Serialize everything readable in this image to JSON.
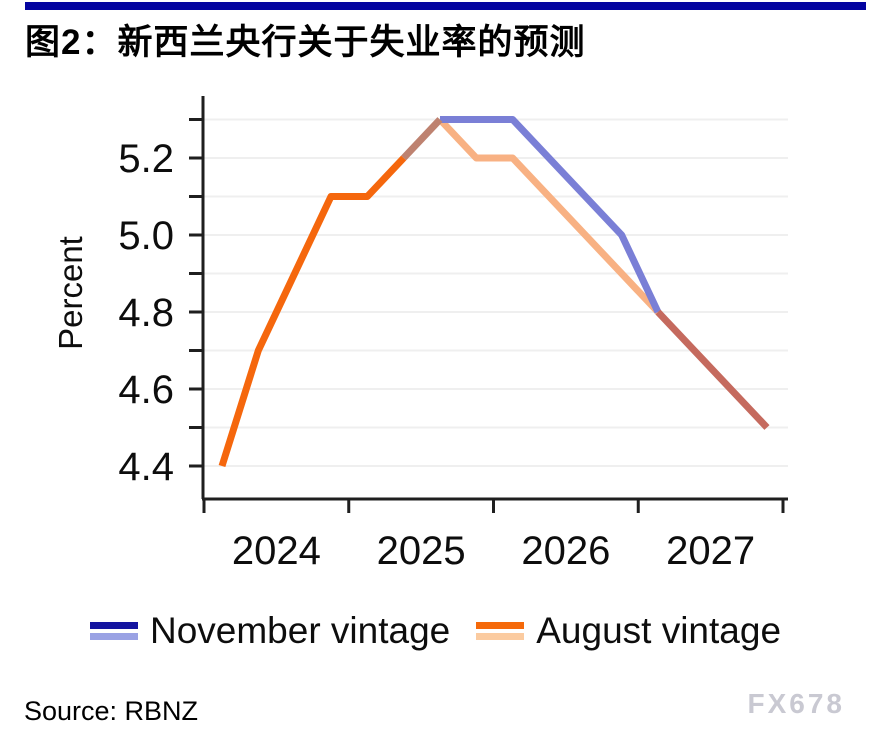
{
  "header": {
    "accent_bar_color": "#0404A0",
    "title": "图2：新西兰央行关于失业率的预测"
  },
  "chart_data": {
    "type": "line",
    "title": "图2：新西兰央行关于失业率的预测",
    "ylabel": "Percent",
    "ylim": [
      4.35,
      5.35
    ],
    "grid": true,
    "legend_position": "bottom",
    "x_tick_labels": [
      "2024",
      "2025",
      "2026",
      "2027"
    ],
    "quarters": [
      "2024Q1",
      "2024Q2",
      "2024Q3",
      "2024Q4",
      "2025Q1",
      "2025Q2",
      "2025Q3",
      "2025Q4",
      "2026Q1",
      "2026Q2",
      "2026Q3",
      "2026Q4",
      "2027Q1",
      "2027Q2",
      "2027Q3",
      "2027Q4"
    ],
    "ytick_minor_values": [
      4.4,
      4.5,
      4.6,
      4.7,
      4.8,
      4.9,
      5.0,
      5.1,
      5.2,
      5.3
    ],
    "ytick_labeled": [
      {
        "v": 5.2,
        "label": "5.2"
      },
      {
        "v": 5.0,
        "label": "5.0"
      },
      {
        "v": 4.8,
        "label": "4.8"
      },
      {
        "v": 4.6,
        "label": "4.6"
      },
      {
        "v": 4.4,
        "label": "4.4"
      }
    ],
    "series": [
      {
        "name": "November vintage",
        "history_color": "#1414A0",
        "forecast_color": "#7A7FD6",
        "history_end": "2025Q3",
        "values": [
          4.4,
          4.7,
          4.9,
          5.1,
          5.1,
          5.2,
          5.3,
          5.3,
          5.3,
          5.2,
          5.1,
          5.0,
          4.8,
          4.7,
          4.6,
          4.5
        ]
      },
      {
        "name": "August vintage",
        "history_color": "#F5670D",
        "forecast_color": "#F8B183",
        "history_end": "2025Q2",
        "values": [
          4.4,
          4.7,
          4.9,
          5.1,
          5.1,
          5.2,
          5.3,
          5.2,
          5.2,
          5.1,
          5.0,
          4.9,
          4.8,
          4.7,
          4.6,
          4.5
        ]
      }
    ],
    "overlap_segments": {
      "shared_history_color": "#F5670D",
      "history_rise_blend_color": "#BE8270",
      "history_rise_span": [
        "2025Q2",
        "2025Q3"
      ],
      "merged_tail_color": "#C56A5E",
      "merged_tail_span": [
        "2027Q1",
        "2027Q4"
      ]
    },
    "axis_color": "#1f1f1f",
    "grid_color": "#efefef"
  },
  "legend": {
    "items": [
      {
        "label": "November vintage",
        "colors": [
          "#1414A0",
          "#9AA2E4"
        ]
      },
      {
        "label": "August vintage",
        "colors": [
          "#F5690A",
          "#FBCBA0"
        ]
      }
    ]
  },
  "footer": {
    "source": "Source: RBNZ",
    "watermark": "FX678"
  }
}
